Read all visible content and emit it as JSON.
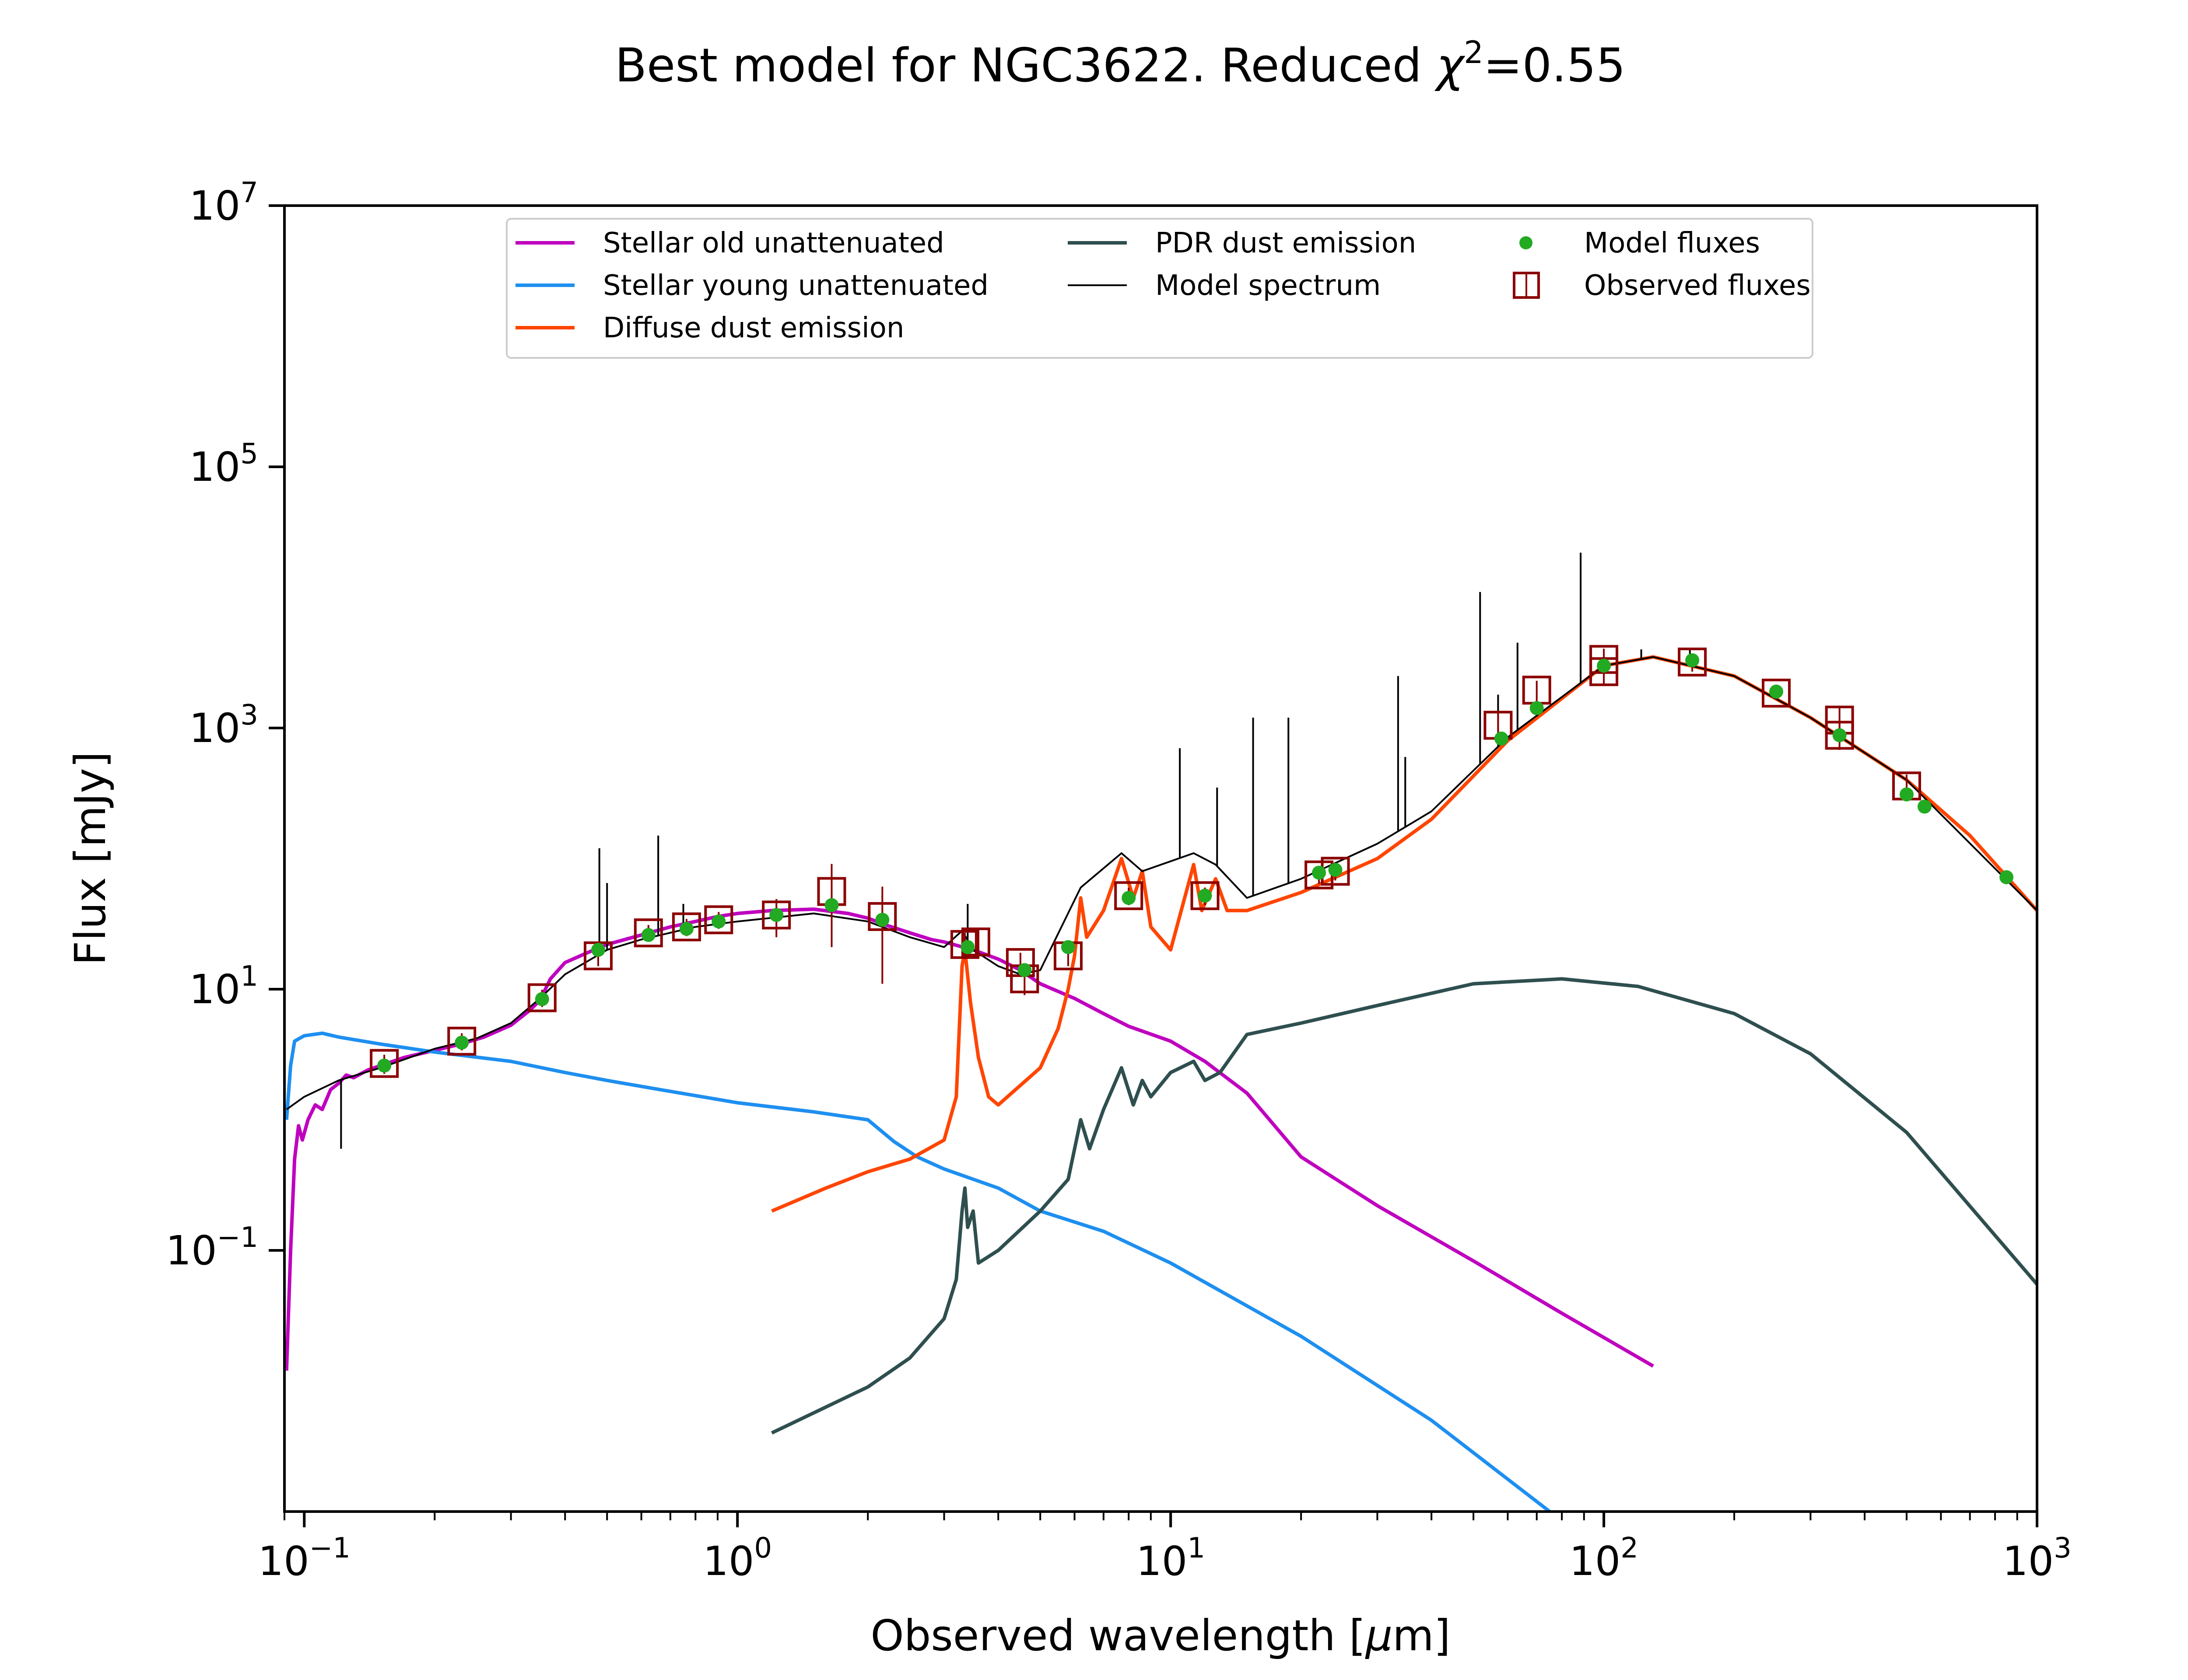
{
  "chart_data": {
    "type": "line",
    "title": {
      "main": "Best model for NGC3622. Reduced ",
      "chi": "χ",
      "sup": "2",
      "tail": "=0.55"
    },
    "xlabel": {
      "text": "Observed wavelength [",
      "mu": "μ",
      "rest": "m]"
    },
    "ylabel": "Flux [mJy]",
    "xscale": "log",
    "yscale": "log",
    "xlim": [
      0.09,
      1000
    ],
    "ylim": [
      0.001,
      10000000
    ],
    "legend_position": "top-center",
    "x_ticks": [
      {
        "value": 0.1,
        "base": "10",
        "exp": "−1"
      },
      {
        "value": 1,
        "base": "10",
        "exp": "0"
      },
      {
        "value": 10,
        "base": "10",
        "exp": "1"
      },
      {
        "value": 100,
        "base": "10",
        "exp": "2"
      },
      {
        "value": 1000,
        "base": "10",
        "exp": "3"
      }
    ],
    "y_ticks": [
      {
        "value": 0.1,
        "base": "10",
        "exp": "−1"
      },
      {
        "value": 10,
        "base": "10",
        "exp": "1"
      },
      {
        "value": 1000,
        "base": "10",
        "exp": "3"
      },
      {
        "value": 100000,
        "base": "10",
        "exp": "5"
      },
      {
        "value": 10000000,
        "base": "10",
        "exp": "7"
      }
    ],
    "series": [
      {
        "name": "Stellar old unattenuated",
        "color": "#bf00bf",
        "kind": "line",
        "points": [
          [
            0.091,
            0.012
          ],
          [
            0.093,
            0.1
          ],
          [
            0.095,
            0.5
          ],
          [
            0.097,
            0.9
          ],
          [
            0.099,
            0.7
          ],
          [
            0.102,
            1.0
          ],
          [
            0.106,
            1.3
          ],
          [
            0.11,
            1.2
          ],
          [
            0.115,
            1.7
          ],
          [
            0.12,
            1.9
          ],
          [
            0.125,
            2.2
          ],
          [
            0.13,
            2.1
          ],
          [
            0.14,
            2.4
          ],
          [
            0.15,
            2.6
          ],
          [
            0.17,
            3.0
          ],
          [
            0.2,
            3.4
          ],
          [
            0.23,
            3.8
          ],
          [
            0.26,
            4.3
          ],
          [
            0.3,
            5.3
          ],
          [
            0.33,
            6.8
          ],
          [
            0.35,
            8.2
          ],
          [
            0.37,
            12
          ],
          [
            0.4,
            16
          ],
          [
            0.45,
            19
          ],
          [
            0.5,
            22
          ],
          [
            0.6,
            26
          ],
          [
            0.7,
            30
          ],
          [
            0.8,
            33
          ],
          [
            0.9,
            36
          ],
          [
            1.0,
            38
          ],
          [
            1.2,
            40
          ],
          [
            1.5,
            41
          ],
          [
            1.8,
            38
          ],
          [
            2.0,
            35
          ],
          [
            2.2,
            31
          ],
          [
            2.5,
            27
          ],
          [
            2.8,
            24
          ],
          [
            3.0,
            23
          ],
          [
            3.5,
            20
          ],
          [
            4.0,
            17
          ],
          [
            4.5,
            14
          ],
          [
            5.0,
            11
          ],
          [
            6.0,
            8.5
          ],
          [
            7.0,
            6.5
          ],
          [
            8.0,
            5.2
          ],
          [
            10.0,
            4.0
          ],
          [
            12.0,
            2.8
          ],
          [
            15.0,
            1.6
          ],
          [
            20.0,
            0.52
          ],
          [
            30.0,
            0.22
          ],
          [
            50.0,
            0.083
          ],
          [
            80.0,
            0.033
          ],
          [
            130.0,
            0.013
          ]
        ]
      },
      {
        "name": "Stellar young unattenuated",
        "color": "#1e8ff0",
        "kind": "line",
        "points": [
          [
            0.091,
            1.0
          ],
          [
            0.093,
            2.6
          ],
          [
            0.095,
            4.0
          ],
          [
            0.1,
            4.4
          ],
          [
            0.11,
            4.6
          ],
          [
            0.12,
            4.3
          ],
          [
            0.15,
            3.8
          ],
          [
            0.2,
            3.3
          ],
          [
            0.3,
            2.8
          ],
          [
            0.4,
            2.3
          ],
          [
            0.5,
            2.0
          ],
          [
            0.7,
            1.65
          ],
          [
            1.0,
            1.35
          ],
          [
            1.5,
            1.15
          ],
          [
            2.0,
            1.0
          ],
          [
            2.3,
            0.68
          ],
          [
            2.6,
            0.52
          ],
          [
            3.0,
            0.42
          ],
          [
            4.0,
            0.3
          ],
          [
            5.0,
            0.2
          ],
          [
            7.0,
            0.14
          ],
          [
            10.0,
            0.08
          ],
          [
            20.0,
            0.022
          ],
          [
            40.0,
            0.005
          ],
          [
            75.0,
            0.001
          ]
        ]
      },
      {
        "name": "Diffuse dust emission",
        "color": "#ff4500",
        "kind": "line",
        "points": [
          [
            1.2,
            0.2
          ],
          [
            1.6,
            0.3
          ],
          [
            2.0,
            0.4
          ],
          [
            2.5,
            0.5
          ],
          [
            3.0,
            0.7
          ],
          [
            3.2,
            1.5
          ],
          [
            3.3,
            15
          ],
          [
            3.35,
            20
          ],
          [
            3.45,
            8
          ],
          [
            3.6,
            3
          ],
          [
            3.8,
            1.5
          ],
          [
            4.0,
            1.3
          ],
          [
            5.0,
            2.5
          ],
          [
            5.5,
            5
          ],
          [
            5.8,
            10
          ],
          [
            6.0,
            18
          ],
          [
            6.2,
            50
          ],
          [
            6.4,
            25
          ],
          [
            7.0,
            40
          ],
          [
            7.7,
            100
          ],
          [
            8.2,
            50
          ],
          [
            8.6,
            80
          ],
          [
            9.0,
            30
          ],
          [
            10.0,
            20
          ],
          [
            11.3,
            90
          ],
          [
            11.8,
            40
          ],
          [
            12.7,
            70
          ],
          [
            13.5,
            40
          ],
          [
            15.0,
            40
          ],
          [
            20.0,
            55
          ],
          [
            30.0,
            100
          ],
          [
            40.0,
            200
          ],
          [
            60.0,
            800
          ],
          [
            100.0,
            3000
          ],
          [
            130.0,
            3500
          ],
          [
            200.0,
            2500
          ],
          [
            300.0,
            1200
          ],
          [
            500.0,
            400
          ],
          [
            700.0,
            150
          ],
          [
            1000.0,
            40
          ]
        ]
      },
      {
        "name": "PDR dust emission",
        "color": "#2f4f4f",
        "kind": "line",
        "points": [
          [
            1.2,
            0.004
          ],
          [
            2.0,
            0.009
          ],
          [
            2.5,
            0.015
          ],
          [
            3.0,
            0.03
          ],
          [
            3.2,
            0.06
          ],
          [
            3.3,
            0.2
          ],
          [
            3.35,
            0.3
          ],
          [
            3.4,
            0.15
          ],
          [
            3.5,
            0.2
          ],
          [
            3.6,
            0.08
          ],
          [
            4.0,
            0.1
          ],
          [
            5.0,
            0.2
          ],
          [
            5.8,
            0.35
          ],
          [
            6.2,
            1.0
          ],
          [
            6.5,
            0.6
          ],
          [
            7.0,
            1.2
          ],
          [
            7.7,
            2.5
          ],
          [
            8.2,
            1.3
          ],
          [
            8.6,
            2.0
          ],
          [
            9.0,
            1.5
          ],
          [
            10.0,
            2.3
          ],
          [
            11.3,
            2.8
          ],
          [
            12.0,
            2.0
          ],
          [
            13.0,
            2.3
          ],
          [
            15.0,
            4.5
          ],
          [
            20.0,
            5.5
          ],
          [
            30.0,
            7.5
          ],
          [
            50.0,
            11
          ],
          [
            80.0,
            12
          ],
          [
            120.0,
            10.5
          ],
          [
            200.0,
            6.5
          ],
          [
            300.0,
            3.2
          ],
          [
            500.0,
            0.8
          ],
          [
            1000.0,
            0.055
          ]
        ]
      },
      {
        "name": "Model spectrum",
        "color": "#000000",
        "kind": "line",
        "points": [
          [
            0.091,
            1.2
          ],
          [
            0.1,
            1.5
          ],
          [
            0.12,
            2.0
          ],
          [
            0.15,
            2.5
          ],
          [
            0.2,
            3.5
          ],
          [
            0.25,
            4.2
          ],
          [
            0.3,
            5.5
          ],
          [
            0.35,
            8.5
          ],
          [
            0.4,
            13
          ],
          [
            0.5,
            20
          ],
          [
            0.6,
            24
          ],
          [
            0.8,
            30
          ],
          [
            1.0,
            33
          ],
          [
            1.5,
            38
          ],
          [
            2.0,
            33
          ],
          [
            2.5,
            25
          ],
          [
            3.0,
            21
          ],
          [
            3.3,
            28
          ],
          [
            3.5,
            20
          ],
          [
            4.0,
            15
          ],
          [
            4.5,
            13
          ],
          [
            5.0,
            14
          ],
          [
            6.2,
            60
          ],
          [
            7.7,
            110
          ],
          [
            8.6,
            80
          ],
          [
            11.3,
            110
          ],
          [
            12.7,
            90
          ],
          [
            15.0,
            50
          ],
          [
            20.0,
            70
          ],
          [
            30.0,
            130
          ],
          [
            40.0,
            230
          ],
          [
            60.0,
            850
          ],
          [
            100.0,
            3000
          ],
          [
            130.0,
            3500
          ],
          [
            200.0,
            2500
          ],
          [
            300.0,
            1200
          ],
          [
            500.0,
            400
          ],
          [
            1000.0,
            40
          ]
        ],
        "lines": [
          [
            0.1216,
            0.6
          ],
          [
            0.48,
            120
          ],
          [
            0.5,
            65
          ],
          [
            0.6563,
            150
          ],
          [
            0.75,
            45
          ],
          [
            3.4,
            45
          ],
          [
            10.5,
            700
          ],
          [
            12.8,
            350
          ],
          [
            15.5,
            1200
          ],
          [
            18.7,
            1200
          ],
          [
            33.5,
            2500
          ],
          [
            34.8,
            600
          ],
          [
            51.8,
            11000
          ],
          [
            57.0,
            1800
          ],
          [
            63.2,
            4500
          ],
          [
            88.4,
            22000
          ],
          [
            122.0,
            4000
          ],
          [
            158.0,
            4000
          ]
        ]
      }
    ],
    "model_fluxes": {
      "name": "Model fluxes",
      "color": "#22aa22",
      "points": [
        [
          0.153,
          2.6
        ],
        [
          0.231,
          3.9
        ],
        [
          0.354,
          8.4
        ],
        [
          0.477,
          20
        ],
        [
          0.623,
          26
        ],
        [
          0.763,
          29
        ],
        [
          0.905,
          33
        ],
        [
          1.23,
          37
        ],
        [
          1.65,
          44
        ],
        [
          2.16,
          34
        ],
        [
          3.4,
          21
        ],
        [
          4.6,
          14
        ],
        [
          5.8,
          21
        ],
        [
          8.0,
          50
        ],
        [
          12.0,
          52
        ],
        [
          22.0,
          78
        ],
        [
          24.0,
          82
        ],
        [
          58.0,
          830
        ],
        [
          70.0,
          1420
        ],
        [
          100.0,
          3000
        ],
        [
          160.0,
          3300
        ],
        [
          250.0,
          1900
        ],
        [
          350.0,
          880
        ],
        [
          500.0,
          310
        ],
        [
          550.0,
          250
        ],
        [
          850.0,
          72
        ]
      ]
    },
    "observed_fluxes": {
      "name": "Observed fluxes",
      "color": "#8b0000",
      "points": [
        [
          0.153,
          2.7,
          0.45
        ],
        [
          0.231,
          4.0,
          0.6
        ],
        [
          0.354,
          8.6,
          1.3
        ],
        [
          0.477,
          18,
          3
        ],
        [
          0.623,
          27,
          4
        ],
        [
          0.763,
          30,
          4.5
        ],
        [
          0.905,
          34,
          5
        ],
        [
          1.23,
          37,
          12
        ],
        [
          1.65,
          56,
          35
        ],
        [
          2.16,
          36,
          25
        ],
        [
          3.35,
          22,
          5
        ],
        [
          3.55,
          23,
          5
        ],
        [
          4.5,
          16,
          3
        ],
        [
          4.6,
          12,
          3
        ],
        [
          5.8,
          18,
          3
        ],
        [
          8.0,
          52,
          8
        ],
        [
          12.0,
          52,
          8
        ],
        [
          22.0,
          75,
          11
        ],
        [
          24.0,
          80,
          12
        ],
        [
          57.0,
          1050,
          250
        ],
        [
          70.0,
          1950,
          350
        ],
        [
          100.0,
          2700,
          600
        ],
        [
          100.0,
          3350,
          700
        ],
        [
          160.0,
          3200,
          500
        ],
        [
          250.0,
          1850,
          200
        ],
        [
          350.0,
          1150,
          300
        ],
        [
          350.0,
          880,
          200
        ],
        [
          500.0,
          360,
          80
        ]
      ]
    }
  }
}
